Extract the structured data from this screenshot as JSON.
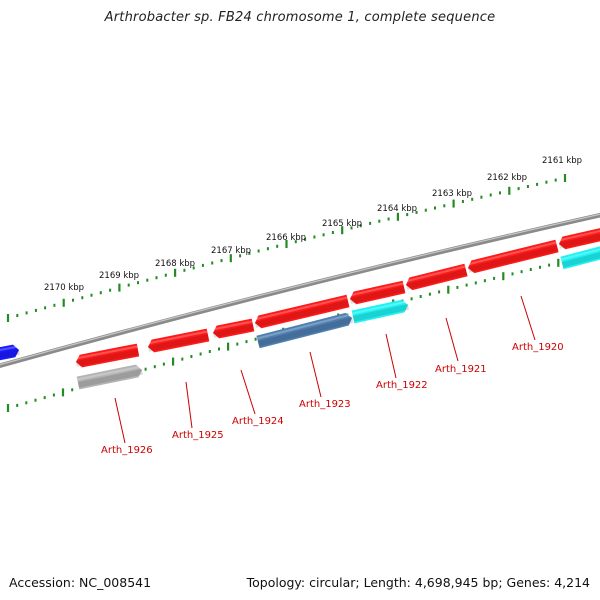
{
  "header": {
    "title": "Arthrobacter sp. FB24 chromosome 1, complete sequence"
  },
  "footer": {
    "accession": "Accession: NC_008541",
    "summary": "Topology: circular; Length: 4,698,945 bp; Genes: 4,214"
  },
  "colors": {
    "backbone": "#8a8a8a",
    "ticks": "#228b22",
    "gene_forward": "#ff1a1a",
    "gene_label": "#cc0000",
    "neighbor_blue": "#1a1aff",
    "steelblue": "#4f7fb0",
    "cyan": "#1ff2f2",
    "gray": "#b4b4b4"
  },
  "kbp_labels": [
    "2161 kbp",
    "2162 kbp",
    "2163 kbp",
    "2164 kbp",
    "2165 kbp",
    "2166 kbp",
    "2167 kbp",
    "2168 kbp",
    "2169 kbp",
    "2170 kbp"
  ],
  "gene_labels": [
    "Arth_1920",
    "Arth_1921",
    "Arth_1922",
    "Arth_1923",
    "Arth_1924",
    "Arth_1925",
    "Arth_1926"
  ]
}
